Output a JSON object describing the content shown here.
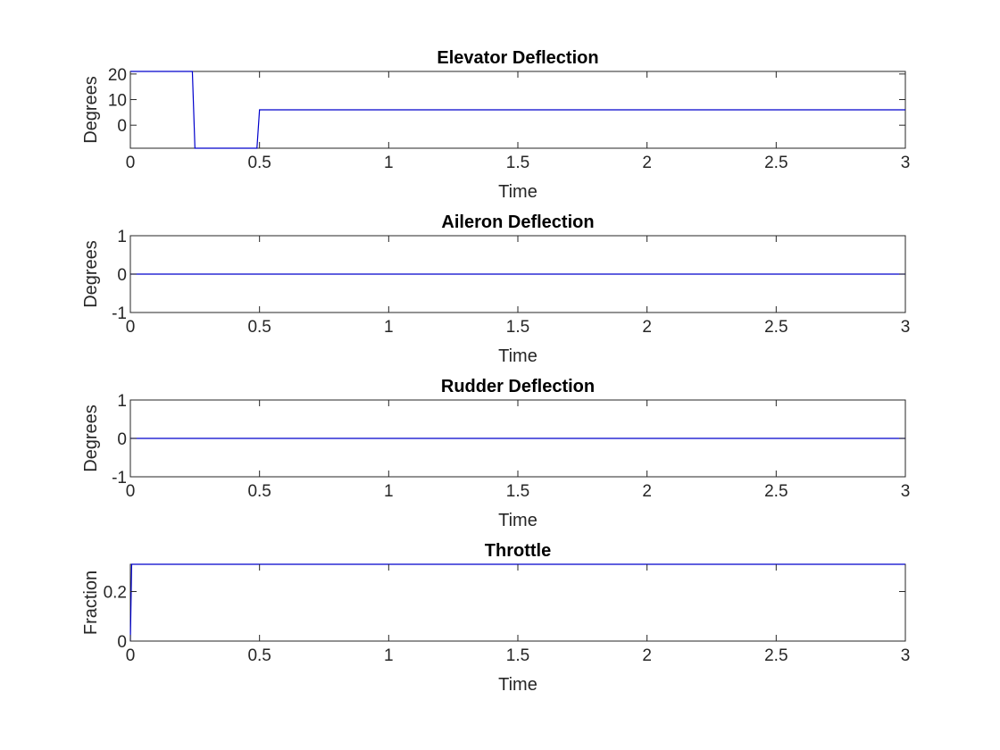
{
  "colors": {
    "axis": "#262626",
    "series": "#0000cc",
    "background": "#ffffff"
  },
  "chart_data": [
    {
      "type": "line",
      "title": "Elevator Deflection",
      "xlabel": "Time",
      "ylabel": "Degrees",
      "xlim": [
        0,
        3
      ],
      "ylim": [
        -9,
        21
      ],
      "xticks": [
        0,
        0.5,
        1,
        1.5,
        2,
        2.5,
        3
      ],
      "xtick_labels": [
        "0",
        "0.5",
        "1",
        "1.5",
        "2",
        "2.5",
        "3"
      ],
      "yticks": [
        0,
        10,
        20
      ],
      "ytick_labels": [
        "0",
        "10",
        "20"
      ],
      "grid": false,
      "series": [
        {
          "x": [
            0,
            0.24,
            0.25,
            0.49,
            0.5,
            3
          ],
          "y": [
            21,
            21,
            -9,
            -9,
            6,
            6
          ]
        }
      ]
    },
    {
      "type": "line",
      "title": "Aileron Deflection",
      "xlabel": "Time",
      "ylabel": "Degrees",
      "xlim": [
        0,
        3
      ],
      "ylim": [
        -1,
        1
      ],
      "xticks": [
        0,
        0.5,
        1,
        1.5,
        2,
        2.5,
        3
      ],
      "xtick_labels": [
        "0",
        "0.5",
        "1",
        "1.5",
        "2",
        "2.5",
        "3"
      ],
      "yticks": [
        -1,
        0,
        1
      ],
      "ytick_labels": [
        "-1",
        "0",
        "1"
      ],
      "grid": false,
      "series": [
        {
          "x": [
            0,
            3
          ],
          "y": [
            0,
            0
          ]
        }
      ]
    },
    {
      "type": "line",
      "title": "Rudder Deflection",
      "xlabel": "Time",
      "ylabel": "Degrees",
      "xlim": [
        0,
        3
      ],
      "ylim": [
        -1,
        1
      ],
      "xticks": [
        0,
        0.5,
        1,
        1.5,
        2,
        2.5,
        3
      ],
      "xtick_labels": [
        "0",
        "0.5",
        "1",
        "1.5",
        "2",
        "2.5",
        "3"
      ],
      "yticks": [
        -1,
        0,
        1
      ],
      "ytick_labels": [
        "-1",
        "0",
        "1"
      ],
      "grid": false,
      "series": [
        {
          "x": [
            0,
            3
          ],
          "y": [
            0,
            0
          ]
        }
      ]
    },
    {
      "type": "line",
      "title": "Throttle",
      "xlabel": "Time",
      "ylabel": "Fraction",
      "xlim": [
        0,
        3
      ],
      "ylim": [
        0,
        0.31
      ],
      "xticks": [
        0,
        0.5,
        1,
        1.5,
        2,
        2.5,
        3
      ],
      "xtick_labels": [
        "0",
        "0.5",
        "1",
        "1.5",
        "2",
        "2.5",
        "3"
      ],
      "yticks": [
        0,
        0.2
      ],
      "ytick_labels": [
        "0",
        "0.2"
      ],
      "grid": false,
      "series": [
        {
          "x": [
            0,
            0.005,
            3
          ],
          "y": [
            0,
            0.31,
            0.31
          ]
        }
      ]
    }
  ]
}
